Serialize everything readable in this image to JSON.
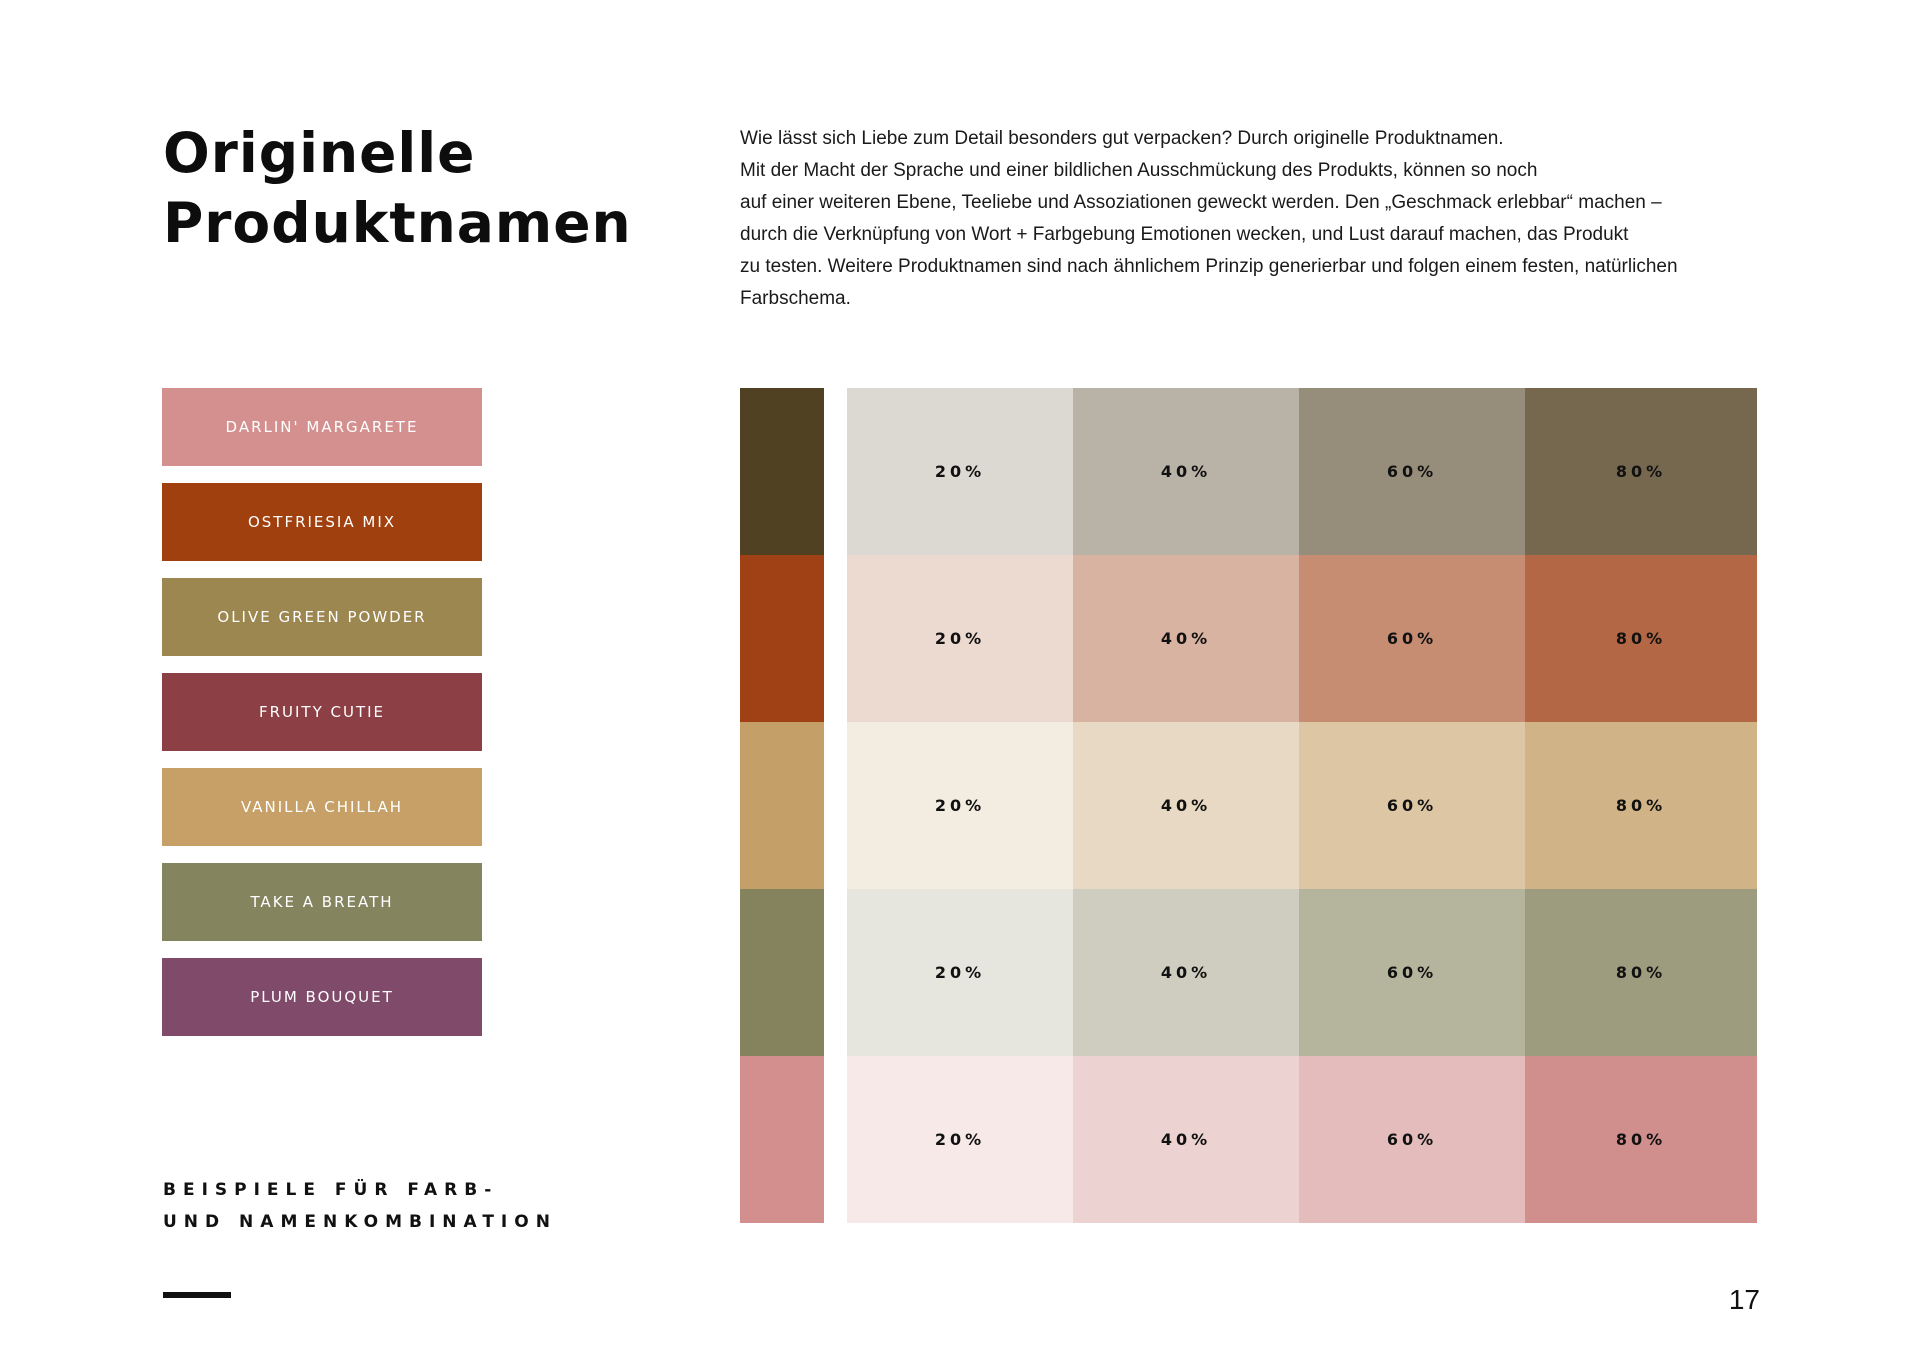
{
  "title": [
    "Originelle",
    "Produktnamen"
  ],
  "intro": [
    "Wie lässt sich Liebe zum Detail besonders gut verpacken? Durch originelle Produktnamen.",
    "Mit der Macht der Sprache und einer bildlichen Ausschmückung des Produkts, können so noch",
    "auf einer weiteren Ebene, Teeliebe und Assoziationen geweckt werden. Den „Geschmack erlebbar“ machen –",
    "durch die Verknüpfung von Wort + Farbgebung Emotionen wecken, und Lust darauf machen, das Produkt",
    "zu testen. Weitere Produktnamen sind nach ähnlichem Prinzip generierbar und folgen einem festen, natürlichen",
    "Farbschema."
  ],
  "tags": [
    {
      "label": "Darlin' Margarete",
      "color": "#d3908f"
    },
    {
      "label": "Ostfriesia Mix",
      "color": "#a0400f"
    },
    {
      "label": "Olive Green Powder",
      "color": "#9c8750"
    },
    {
      "label": "Fruity Cutie",
      "color": "#8c3f45"
    },
    {
      "label": "Vanilla Chillah",
      "color": "#c6a067"
    },
    {
      "label": "Take a Breath",
      "color": "#84845f"
    },
    {
      "label": "Plum Bouquet",
      "color": "#804a6a"
    }
  ],
  "palette": [
    {
      "base": "#514123",
      "tints": [
        {
          "label": "20%",
          "color": "#dcd9d3"
        },
        {
          "label": "40%",
          "color": "#b9b3a7"
        },
        {
          "label": "60%",
          "color": "#978d7b"
        },
        {
          "label": "80%",
          "color": "#75684f"
        }
      ]
    },
    {
      "base": "#a04115",
      "tints": [
        {
          "label": "20%",
          "color": "#ecd9d0"
        },
        {
          "label": "40%",
          "color": "#d9b3a1"
        },
        {
          "label": "60%",
          "color": "#c68d73"
        },
        {
          "label": "80%",
          "color": "#b36744"
        }
      ]
    },
    {
      "base": "#c4a068",
      "tints": [
        {
          "label": "20%",
          "color": "#f3ece1"
        },
        {
          "label": "40%",
          "color": "#e7d9c3"
        },
        {
          "label": "60%",
          "color": "#dcc6a4"
        },
        {
          "label": "80%",
          "color": "#d0b386"
        }
      ]
    },
    {
      "base": "#84835e",
      "tints": [
        {
          "label": "20%",
          "color": "#e6e6df"
        },
        {
          "label": "40%",
          "color": "#cecdbf"
        },
        {
          "label": "60%",
          "color": "#b5b59e"
        },
        {
          "label": "80%",
          "color": "#9d9c7e"
        }
      ]
    },
    {
      "base": "#d28f8e",
      "tints": [
        {
          "label": "20%",
          "color": "#f6e9e8"
        },
        {
          "label": "40%",
          "color": "#edd2d2"
        },
        {
          "label": "60%",
          "color": "#e4bcbb"
        },
        {
          "label": "80%",
          "color": "#d08e8d"
        }
      ]
    }
  ],
  "footer": {
    "caption": [
      "BEISPIELE FÜR FARB-",
      "UND NAMENKOMBINATION"
    ],
    "page_number": "17"
  }
}
